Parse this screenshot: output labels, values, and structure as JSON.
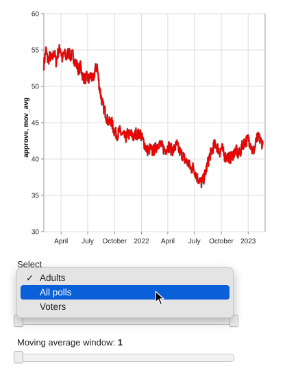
{
  "chart_data": {
    "type": "line",
    "ylabel": "approve, mov_avg",
    "ylim": [
      30,
      60
    ],
    "y_ticks": [
      30,
      35,
      40,
      45,
      50,
      55,
      60
    ],
    "x_range": [
      "2021-02-01",
      "2023-02-28"
    ],
    "x_ticks": [
      {
        "date": "2021-04-01",
        "label": "April"
      },
      {
        "date": "2021-07-01",
        "label": "July"
      },
      {
        "date": "2021-10-01",
        "label": "October"
      },
      {
        "date": "2022-01-01",
        "label": "2022"
      },
      {
        "date": "2022-04-01",
        "label": "April"
      },
      {
        "date": "2022-07-01",
        "label": "July"
      },
      {
        "date": "2022-10-01",
        "label": "October"
      },
      {
        "date": "2023-01-01",
        "label": "2023"
      }
    ],
    "grid": true,
    "series": [
      {
        "color": "#ee0000",
        "points": [
          [
            "2021-02-01",
            53.0
          ],
          [
            "2021-02-08",
            55.0
          ],
          [
            "2021-02-15",
            53.5
          ],
          [
            "2021-02-22",
            54.2
          ],
          [
            "2021-03-01",
            53.6
          ],
          [
            "2021-03-08",
            54.8
          ],
          [
            "2021-03-15",
            53.4
          ],
          [
            "2021-03-22",
            54.7
          ],
          [
            "2021-03-29",
            55.3
          ],
          [
            "2021-04-05",
            53.8
          ],
          [
            "2021-04-12",
            54.6
          ],
          [
            "2021-04-19",
            53.9
          ],
          [
            "2021-04-26",
            54.8
          ],
          [
            "2021-05-03",
            54.1
          ],
          [
            "2021-05-10",
            54.4
          ],
          [
            "2021-05-17",
            53.6
          ],
          [
            "2021-05-24",
            53.0
          ],
          [
            "2021-05-31",
            52.3
          ],
          [
            "2021-06-07",
            52.8
          ],
          [
            "2021-06-14",
            51.4
          ],
          [
            "2021-06-21",
            51.0
          ],
          [
            "2021-06-28",
            51.3
          ],
          [
            "2021-07-05",
            50.9
          ],
          [
            "2021-07-12",
            51.6
          ],
          [
            "2021-07-19",
            50.7
          ],
          [
            "2021-07-26",
            52.2
          ],
          [
            "2021-08-02",
            52.8
          ],
          [
            "2021-08-09",
            50.3
          ],
          [
            "2021-08-16",
            48.5
          ],
          [
            "2021-08-23",
            47.2
          ],
          [
            "2021-08-30",
            46.5
          ],
          [
            "2021-09-06",
            45.4
          ],
          [
            "2021-09-13",
            45.0
          ],
          [
            "2021-09-20",
            45.3
          ],
          [
            "2021-09-27",
            44.1
          ],
          [
            "2021-10-04",
            43.6
          ],
          [
            "2021-10-11",
            43.3
          ],
          [
            "2021-10-18",
            43.9
          ],
          [
            "2021-10-25",
            43.4
          ],
          [
            "2021-11-01",
            43.2
          ],
          [
            "2021-11-08",
            42.9
          ],
          [
            "2021-11-15",
            43.5
          ],
          [
            "2021-11-22",
            43.3
          ],
          [
            "2021-11-29",
            43.4
          ],
          [
            "2021-12-06",
            42.9
          ],
          [
            "2021-12-13",
            43.6
          ],
          [
            "2021-12-20",
            43.3
          ],
          [
            "2021-12-27",
            43.6
          ],
          [
            "2022-01-03",
            42.8
          ],
          [
            "2022-01-10",
            42.2
          ],
          [
            "2022-01-17",
            41.4
          ],
          [
            "2022-01-24",
            41.1
          ],
          [
            "2022-01-31",
            41.5
          ],
          [
            "2022-02-07",
            41.0
          ],
          [
            "2022-02-14",
            41.3
          ],
          [
            "2022-02-21",
            41.7
          ],
          [
            "2022-02-28",
            42.2
          ],
          [
            "2022-03-07",
            42.0
          ],
          [
            "2022-03-14",
            41.6
          ],
          [
            "2022-03-21",
            41.2
          ],
          [
            "2022-03-28",
            41.4
          ],
          [
            "2022-04-04",
            41.8
          ],
          [
            "2022-04-11",
            41.4
          ],
          [
            "2022-04-18",
            41.2
          ],
          [
            "2022-04-25",
            41.5
          ],
          [
            "2022-05-02",
            42.0
          ],
          [
            "2022-05-09",
            41.2
          ],
          [
            "2022-05-16",
            40.8
          ],
          [
            "2022-05-23",
            40.5
          ],
          [
            "2022-05-30",
            39.8
          ],
          [
            "2022-06-06",
            39.6
          ],
          [
            "2022-06-13",
            39.2
          ],
          [
            "2022-06-20",
            38.6
          ],
          [
            "2022-06-27",
            38.9
          ],
          [
            "2022-07-04",
            38.2
          ],
          [
            "2022-07-11",
            37.4
          ],
          [
            "2022-07-18",
            37.1
          ],
          [
            "2022-07-25",
            36.7
          ],
          [
            "2022-08-01",
            37.2
          ],
          [
            "2022-08-08",
            38.1
          ],
          [
            "2022-08-15",
            39.3
          ],
          [
            "2022-08-22",
            40.4
          ],
          [
            "2022-08-29",
            41.0
          ],
          [
            "2022-09-05",
            41.8
          ],
          [
            "2022-09-12",
            42.0
          ],
          [
            "2022-09-19",
            41.5
          ],
          [
            "2022-09-26",
            41.0
          ],
          [
            "2022-10-03",
            41.6
          ],
          [
            "2022-10-10",
            40.6
          ],
          [
            "2022-10-17",
            40.2
          ],
          [
            "2022-10-24",
            40.4
          ],
          [
            "2022-10-31",
            40.1
          ],
          [
            "2022-11-07",
            40.4
          ],
          [
            "2022-11-14",
            40.9
          ],
          [
            "2022-11-21",
            41.2
          ],
          [
            "2022-11-28",
            40.6
          ],
          [
            "2022-12-05",
            40.9
          ],
          [
            "2022-12-12",
            41.9
          ],
          [
            "2022-12-19",
            42.3
          ],
          [
            "2022-12-26",
            42.5
          ],
          [
            "2023-01-02",
            42.8
          ],
          [
            "2023-01-09",
            42.1
          ],
          [
            "2023-01-16",
            41.0
          ],
          [
            "2023-01-23",
            41.4
          ],
          [
            "2023-01-30",
            42.7
          ],
          [
            "2023-02-06",
            43.0
          ],
          [
            "2023-02-13",
            42.5
          ],
          [
            "2023-02-20",
            42.0
          ]
        ]
      }
    ]
  },
  "controls": {
    "select_label": "Select",
    "options": [
      {
        "label": "Adults",
        "check": "✓"
      },
      {
        "label": "All polls",
        "check": ""
      },
      {
        "label": "Voters",
        "check": ""
      }
    ],
    "selected_index": 0,
    "highlighted_index": 1,
    "moving_average_label": "Moving average window: ",
    "moving_average_value": "1"
  },
  "icons": {
    "cursor": "arrow-cursor-icon",
    "check": "checkmark-icon"
  }
}
